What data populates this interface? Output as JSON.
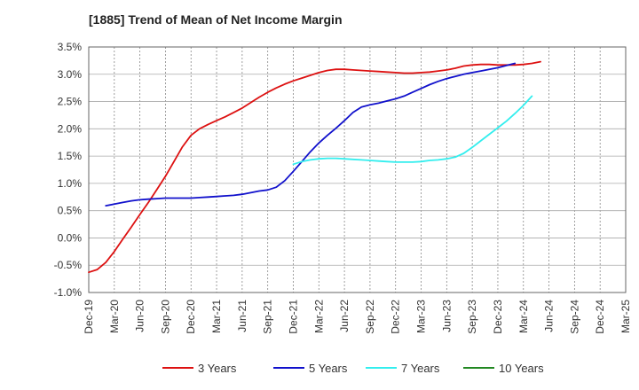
{
  "chart_data": {
    "type": "line",
    "title": "[1885]  Trend of Mean of Net Income Margin",
    "xlabel": "",
    "ylabel": "",
    "x_tick_labels": [
      "Dec-19",
      "Mar-20",
      "Jun-20",
      "Sep-20",
      "Dec-20",
      "Mar-21",
      "Jun-21",
      "Sep-21",
      "Dec-21",
      "Mar-22",
      "Jun-22",
      "Sep-22",
      "Dec-22",
      "Mar-23",
      "Jun-23",
      "Sep-23",
      "Dec-23",
      "Mar-24",
      "Jun-24",
      "Sep-24",
      "Dec-24",
      "Mar-25"
    ],
    "y_tick_labels": [
      "3.5%",
      "3.0%",
      "2.5%",
      "2.0%",
      "1.5%",
      "1.0%",
      "0.5%",
      "0.0%",
      "-0.5%",
      "-1.0%"
    ],
    "ylim": [
      -1.0,
      3.5
    ],
    "grid": true,
    "legend_position": "bottom",
    "series": [
      {
        "name": "3 Years",
        "color": "#dd1111",
        "values": [
          -0.63,
          -0.58,
          -0.45,
          -0.25,
          -0.02,
          0.2,
          0.43,
          0.65,
          0.89,
          1.13,
          1.4,
          1.67,
          1.88,
          2.0,
          2.08,
          2.15,
          2.22,
          2.3,
          2.38,
          2.48,
          2.58,
          2.67,
          2.75,
          2.82,
          2.88,
          2.93,
          2.98,
          3.03,
          3.07,
          3.09,
          3.09,
          3.08,
          3.07,
          3.06,
          3.05,
          3.04,
          3.03,
          3.02,
          3.02,
          3.03,
          3.04,
          3.06,
          3.08,
          3.11,
          3.15,
          3.17,
          3.18,
          3.18,
          3.17,
          3.17,
          3.17,
          3.18,
          3.2,
          3.23
        ]
      },
      {
        "name": "5 Years",
        "color": "#1111cc",
        "values": [
          null,
          null,
          0.59,
          0.62,
          0.65,
          0.68,
          0.7,
          0.71,
          0.72,
          0.73,
          0.73,
          0.73,
          0.73,
          0.74,
          0.75,
          0.76,
          0.77,
          0.78,
          0.8,
          0.83,
          0.86,
          0.88,
          0.93,
          1.05,
          1.22,
          1.4,
          1.58,
          1.74,
          1.88,
          2.01,
          2.15,
          2.3,
          2.4,
          2.44,
          2.47,
          2.51,
          2.55,
          2.6,
          2.67,
          2.74,
          2.81,
          2.87,
          2.92,
          2.96,
          3.0,
          3.03,
          3.06,
          3.09,
          3.12,
          3.16,
          3.2
        ]
      },
      {
        "name": "7 Years",
        "color": "#33eeee",
        "values": [
          null,
          null,
          null,
          null,
          null,
          null,
          null,
          null,
          null,
          null,
          null,
          null,
          null,
          null,
          null,
          null,
          null,
          null,
          null,
          null,
          null,
          null,
          null,
          null,
          1.35,
          1.4,
          1.43,
          1.45,
          1.46,
          1.46,
          1.45,
          1.44,
          1.43,
          1.42,
          1.41,
          1.4,
          1.39,
          1.39,
          1.39,
          1.4,
          1.42,
          1.43,
          1.45,
          1.48,
          1.55,
          1.66,
          1.78,
          1.9,
          2.02,
          2.14,
          2.28,
          2.43,
          2.6
        ]
      },
      {
        "name": "10 Years",
        "color": "#228822",
        "values": []
      }
    ]
  }
}
